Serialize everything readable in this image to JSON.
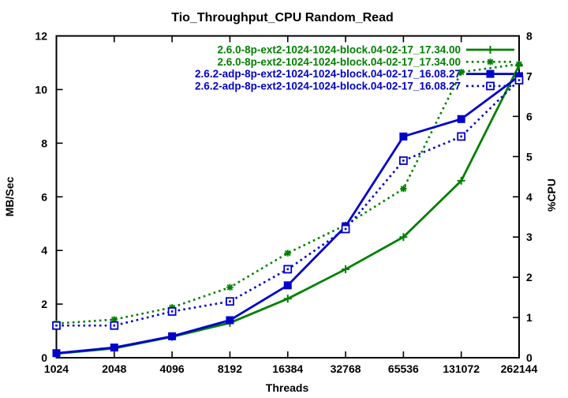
{
  "chart_data": {
    "type": "line",
    "title": "Tio_Throughput_CPU Random_Read",
    "xlabel": "Threads",
    "ylabel": "MB/Sec",
    "y2label": "%CPU",
    "x_categories": [
      "1024",
      "2048",
      "4096",
      "8192",
      "16384",
      "32768",
      "65536",
      "131072",
      "262144"
    ],
    "x_scale": "log2-categorical",
    "ylim": [
      0,
      12
    ],
    "y2lim": [
      0,
      8
    ],
    "yticks": [
      0,
      2,
      4,
      6,
      8,
      10,
      12
    ],
    "y2ticks": [
      0,
      1,
      2,
      3,
      4,
      5,
      6,
      7,
      8
    ],
    "grid": false,
    "legend_position": "top-right-inside",
    "background_color": "#ffffff",
    "series": [
      {
        "name": "2.6.0-8p-ext2-1024-1024-block.04-02-17_17.34.00",
        "axis": "y1",
        "unit": "MB/Sec",
        "style": "solid",
        "marker": "plus",
        "color": "#008000",
        "values": [
          0.15,
          0.35,
          0.78,
          1.3,
          2.2,
          3.3,
          4.5,
          6.6,
          10.9
        ]
      },
      {
        "name": "2.6.0-8p-ext2-1024-1024-block.04-02-17_17.34.00",
        "axis": "y2",
        "unit": "%CPU",
        "style": "dotted",
        "marker": "asterisk",
        "color": "#008000",
        "values": [
          0.85,
          0.95,
          1.25,
          1.75,
          2.6,
          3.3,
          4.2,
          7.1,
          7.3
        ]
      },
      {
        "name": "2.6.2-adp-8p-ext2-1024-1024-block.04-02-17_16.08.27",
        "axis": "y1",
        "unit": "MB/Sec",
        "style": "solid",
        "marker": "square-filled",
        "color": "#0000cc",
        "values": [
          0.17,
          0.38,
          0.8,
          1.4,
          2.7,
          4.9,
          8.25,
          8.9,
          10.5
        ]
      },
      {
        "name": "2.6.2-adp-8p-ext2-1024-1024-block.04-02-17_16.08.27",
        "axis": "y2",
        "unit": "%CPU",
        "style": "dotted",
        "marker": "square-open",
        "color": "#0000cc",
        "values": [
          0.8,
          0.8,
          1.15,
          1.4,
          2.2,
          3.2,
          4.9,
          5.5,
          6.9
        ]
      }
    ]
  }
}
